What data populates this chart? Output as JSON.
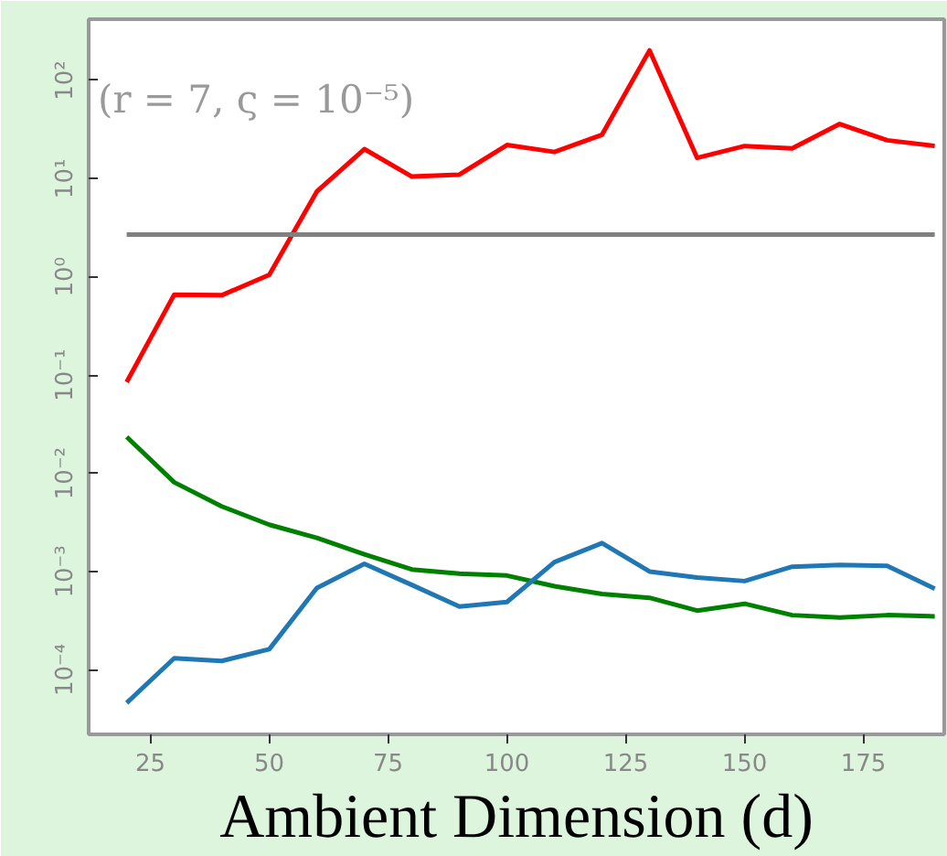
{
  "chart_data": {
    "type": "line",
    "xlabel": "Ambient Dimension (d)",
    "annotations": [
      "(r = 7, ς = 10⁻⁵)"
    ],
    "x": [
      20,
      30,
      40,
      50,
      60,
      70,
      80,
      90,
      100,
      110,
      120,
      130,
      140,
      150,
      160,
      170,
      180,
      190
    ],
    "series": [
      {
        "color": "#ff0000",
        "values": [
          0.085,
          0.66,
          0.65,
          1.05,
          7.4,
          20,
          10.5,
          11,
          22,
          18.7,
          28,
          202,
          16.3,
          21.5,
          20.3,
          36,
          24.6,
          21.5
        ]
      },
      {
        "color": "#808080",
        "values": [
          2.7,
          2.7,
          2.7,
          2.7,
          2.7,
          2.7,
          2.7,
          2.7,
          2.7,
          2.7,
          2.7,
          2.7,
          2.7,
          2.7,
          2.7,
          2.7,
          2.7,
          2.7
        ]
      },
      {
        "color": "#008000",
        "values": [
          0.0235,
          0.0081,
          0.0046,
          0.003,
          0.0022,
          0.0015,
          0.00105,
          0.00095,
          0.00091,
          0.00071,
          0.00059,
          0.00054,
          0.0004,
          0.00047,
          0.00036,
          0.00034,
          0.00036,
          0.00035
        ]
      },
      {
        "color": "#1f77b4",
        "values": [
          4.6e-05,
          0.000131,
          0.000123,
          0.000162,
          0.00068,
          0.0012,
          0.00073,
          0.00044,
          0.00049,
          0.00125,
          0.00195,
          0.001,
          0.00087,
          0.0008,
          0.00112,
          0.00117,
          0.00114,
          0.00067
        ]
      }
    ],
    "log": "y",
    "xlim": [
      12,
      192
    ],
    "ylim": [
      2.2e-05,
      420
    ],
    "xticks": [
      25,
      50,
      75,
      100,
      125,
      150,
      175
    ],
    "yticks": [
      {
        "value": 0.0001,
        "label": "10⁻⁴"
      },
      {
        "value": 0.001,
        "label": "10⁻³"
      },
      {
        "value": 0.01,
        "label": "10⁻²"
      },
      {
        "value": 0.1,
        "label": "10⁻¹"
      },
      {
        "value": 1,
        "label": "10⁰"
      },
      {
        "value": 10,
        "label": "10¹"
      },
      {
        "value": 100,
        "label": "10²"
      }
    ],
    "grid": false,
    "line_style": "solid"
  }
}
